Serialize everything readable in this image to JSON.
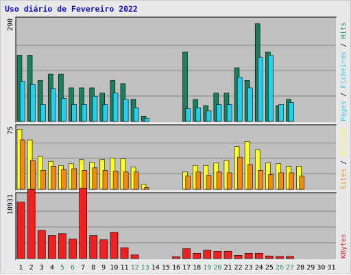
{
  "chart_data": {
    "type": "bar",
    "title": "Uso diário de Fevereiro 2022",
    "categories": [
      "1",
      "2",
      "3",
      "4",
      "5",
      "6",
      "7",
      "8",
      "9",
      "10",
      "11",
      "12",
      "13",
      "14",
      "15",
      "16",
      "17",
      "18",
      "19",
      "20",
      "21",
      "22",
      "23",
      "24",
      "25",
      "26",
      "27",
      "28",
      "29",
      "30",
      "31"
    ],
    "weekend_days": [
      "5",
      "6",
      "12",
      "13",
      "19",
      "20",
      "26",
      "27"
    ],
    "colors": {
      "hits": "#1a7f5f",
      "files": "#22d0ee",
      "pages": "#22d0ee",
      "visits": "#ffff22",
      "sites": "#f28a10",
      "kbytes": "#ee2020",
      "title": "#1010c0",
      "weekday_label": "#000000",
      "weekend_label": "#2a8a5a",
      "plot_bg": "#c0c0c0",
      "frame_bg": "#e8e8e8",
      "gridline": "#888888"
    },
    "panels": [
      {
        "id": "hits-files",
        "ymax": 290,
        "ymax_label": "290",
        "right_label_parts": [
          {
            "text": "Pages",
            "color": "#22d0ee"
          },
          {
            "text": " / ",
            "color": "#000000"
          },
          {
            "text": "Ficheiros",
            "color": "#22d0ee"
          },
          {
            "text": " / ",
            "color": "#000000"
          },
          {
            "text": "Hits",
            "color": "#1a7f5f"
          }
        ],
        "series": [
          {
            "name": "Hits",
            "color": "#1a7f5f",
            "values": [
              189,
              189,
              117,
              135,
              135,
              96,
              96,
              96,
              81,
              117,
              108,
              63,
              15,
              0,
              0,
              0,
              198,
              63,
              45,
              81,
              81,
              153,
              117,
              279,
              198,
              45,
              63,
              0,
              0,
              0,
              0
            ]
          },
          {
            "name": "Ficheiros",
            "color": "#22d0ee",
            "values": [
              114,
              105,
              48,
              93,
              66,
              48,
              48,
              72,
              48,
              81,
              63,
              39,
              9,
              0,
              0,
              0,
              36,
              39,
              30,
              48,
              48,
              126,
              96,
              183,
              189,
              48,
              54,
              0,
              0,
              0,
              0
            ]
          }
        ]
      },
      {
        "id": "visits-sites",
        "ymax": 75,
        "ymax_label": "75",
        "right_label_parts": [
          {
            "text": "Sites",
            "color": "#f28a10"
          },
          {
            "text": " / ",
            "color": "#000000"
          },
          {
            "text": "Visitas",
            "color": "#ffff22"
          }
        ],
        "series": [
          {
            "name": "Visitas",
            "color": "#ffff22",
            "values": [
              73,
              60,
              40,
              34,
              29,
              31,
              36,
              33,
              36,
              38,
              37,
              27,
              6,
              0,
              0,
              0,
              21,
              29,
              29,
              32,
              35,
              52,
              58,
              48,
              32,
              31,
              28,
              28,
              0,
              0,
              0
            ]
          },
          {
            "name": "Sites",
            "color": "#f28a10",
            "values": [
              60,
              35,
              23,
              28,
              24,
              25,
              23,
              26,
              23,
              22,
              21,
              21,
              2,
              0,
              0,
              0,
              16,
              21,
              17,
              21,
              20,
              39,
              30,
              23,
              18,
              20,
              20,
              16,
              0,
              0,
              0
            ]
          }
        ]
      },
      {
        "id": "kbytes",
        "ymax": 18931,
        "ymax_label": "18931",
        "right_label_parts": [
          {
            "text": "KBytes",
            "color": "#ee2020"
          }
        ],
        "series": [
          {
            "name": "KBytes",
            "color": "#ee2020",
            "values": [
              16940,
              20700,
              8470,
              6900,
              7470,
              5900,
              21080,
              6900,
              5650,
              7890,
              3260,
              1100,
              0,
              0,
              0,
              550,
              2950,
              1570,
              2510,
              2200,
              2200,
              940,
              1570,
              1570,
              780,
              630,
              630,
              0,
              0,
              0,
              0
            ]
          }
        ]
      }
    ]
  }
}
